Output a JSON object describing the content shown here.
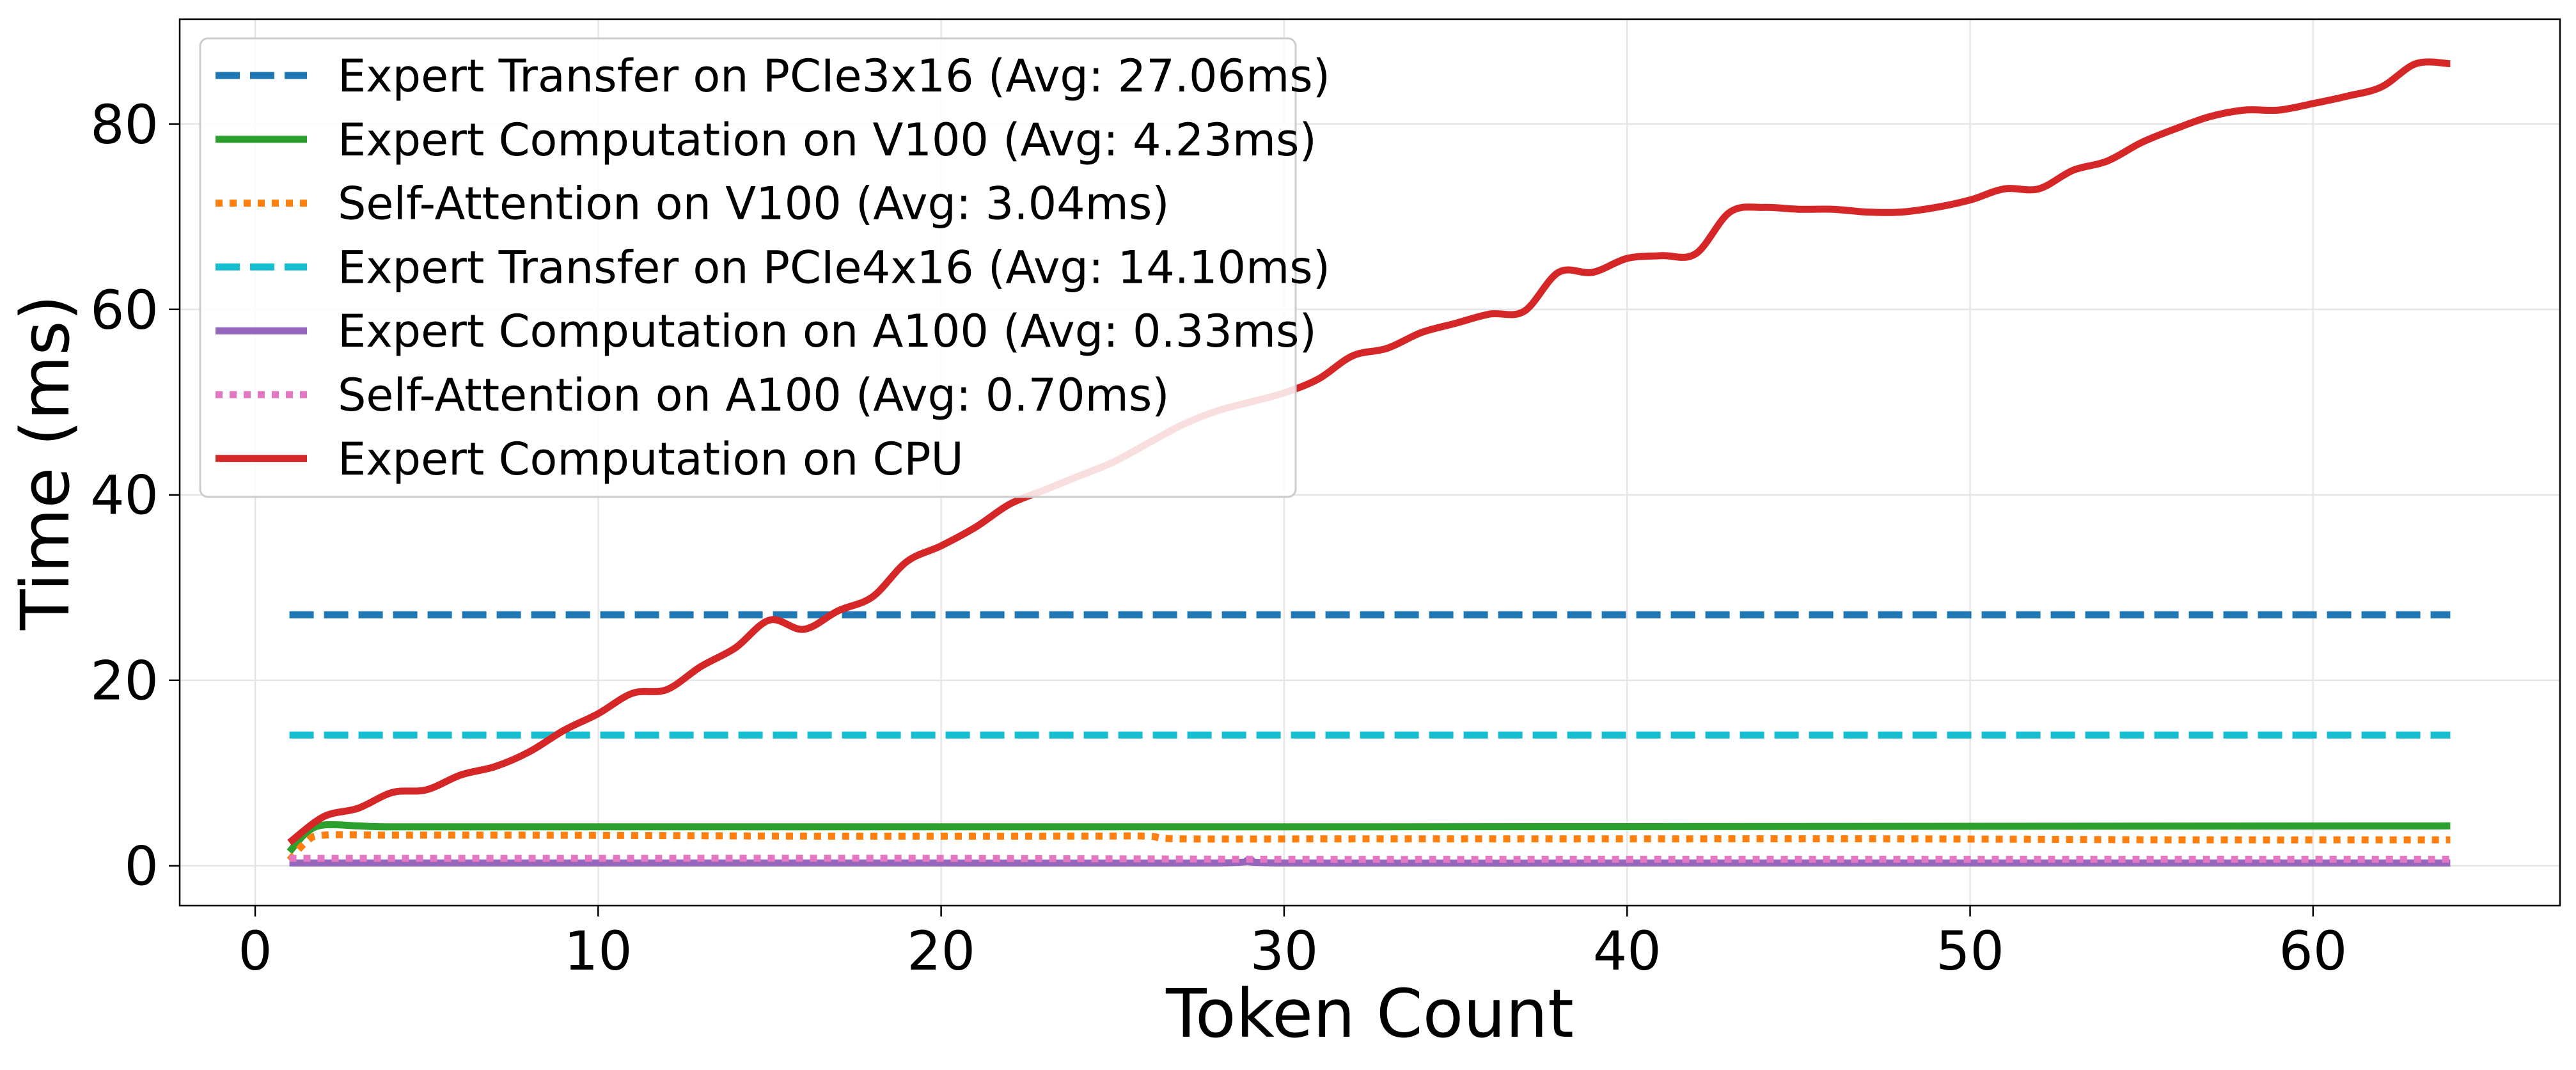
{
  "chart_data": {
    "type": "line",
    "title": "",
    "xlabel": "Token Count",
    "ylabel": "Time (ms)",
    "xlim": [
      -2.2,
      67.2
    ],
    "ylim": [
      -4.3,
      91.3
    ],
    "xticks": [
      0,
      10,
      20,
      30,
      40,
      50,
      60
    ],
    "yticks": [
      0,
      20,
      40,
      60,
      80
    ],
    "grid": true,
    "legend_position": "top-left",
    "series": [
      {
        "name": "Expert Transfer on PCIe3x16 (Avg: 27.06ms)",
        "color": "#1f77b4",
        "style": "dashed",
        "x": [
          1,
          64
        ],
        "y": [
          27.06,
          27.06
        ]
      },
      {
        "name": "Expert Computation on V100 (Avg: 4.23ms)",
        "color": "#2ca02c",
        "style": "solid",
        "x": [
          1,
          1.5,
          2,
          3,
          4,
          8,
          16,
          32,
          64
        ],
        "y": [
          1.5,
          3.6,
          4.4,
          4.3,
          4.2,
          4.2,
          4.2,
          4.2,
          4.3
        ]
      },
      {
        "name": "Self-Attention on V100 (Avg: 3.04ms)",
        "color": "#ff7f0e",
        "style": "dotted",
        "x": [
          1,
          1.5,
          2,
          4,
          8,
          16,
          24,
          26,
          27,
          32,
          40,
          48,
          56,
          64
        ],
        "y": [
          0.6,
          2.6,
          3.3,
          3.3,
          3.3,
          3.2,
          3.2,
          3.2,
          2.9,
          2.9,
          2.9,
          2.9,
          2.8,
          2.8
        ]
      },
      {
        "name": "Expert Transfer on PCIe4x16 (Avg: 14.10ms)",
        "color": "#17becf",
        "style": "dashed",
        "x": [
          1,
          64
        ],
        "y": [
          14.1,
          14.1
        ]
      },
      {
        "name": "Expert Computation on A100 (Avg: 0.33ms)",
        "color": "#9467bd",
        "style": "solid",
        "x": [
          1,
          10,
          20,
          28,
          29,
          30,
          40,
          50,
          64
        ],
        "y": [
          0.3,
          0.3,
          0.3,
          0.3,
          0.6,
          0.3,
          0.3,
          0.3,
          0.3
        ]
      },
      {
        "name": "Self-Attention on A100 (Avg: 0.70ms)",
        "color": "#e377c2",
        "style": "dotted",
        "x": [
          1,
          10,
          20,
          30,
          40,
          50,
          64
        ],
        "y": [
          0.8,
          0.8,
          0.8,
          0.7,
          0.7,
          0.7,
          0.7
        ]
      },
      {
        "name": "Expert Computation on CPU",
        "color": "#d62728",
        "style": "solid",
        "x": [
          1,
          2,
          3,
          4,
          5,
          6,
          7,
          8,
          9,
          10,
          11,
          12,
          13,
          14,
          15,
          16,
          17,
          18,
          19,
          20,
          21,
          22,
          23,
          24,
          25,
          26,
          27,
          28,
          29,
          30,
          31,
          32,
          33,
          34,
          35,
          36,
          37,
          38,
          39,
          40,
          41,
          42,
          43,
          44,
          45,
          46,
          47,
          48,
          49,
          50,
          51,
          52,
          53,
          54,
          55,
          56,
          57,
          58,
          59,
          60,
          61,
          62,
          63,
          64
        ],
        "y": [
          2.5,
          5.3,
          6.2,
          7.9,
          8.2,
          9.8,
          10.7,
          12.3,
          14.6,
          16.4,
          18.6,
          19.0,
          21.5,
          23.5,
          26.5,
          25.5,
          27.5,
          29.0,
          32.8,
          34.5,
          36.5,
          39.0,
          40.5,
          42.0,
          43.5,
          45.5,
          47.5,
          49.0,
          50.0,
          51.0,
          52.5,
          55.0,
          55.8,
          57.5,
          58.5,
          59.5,
          59.8,
          64.0,
          64.0,
          65.5,
          65.8,
          66.0,
          70.5,
          71.0,
          70.8,
          70.8,
          70.5,
          70.5,
          71.0,
          71.8,
          73.0,
          73.0,
          75.0,
          76.0,
          78.0,
          79.5,
          80.8,
          81.5,
          81.5,
          82.2,
          83.0,
          84.0,
          86.5,
          86.5
        ]
      }
    ]
  }
}
